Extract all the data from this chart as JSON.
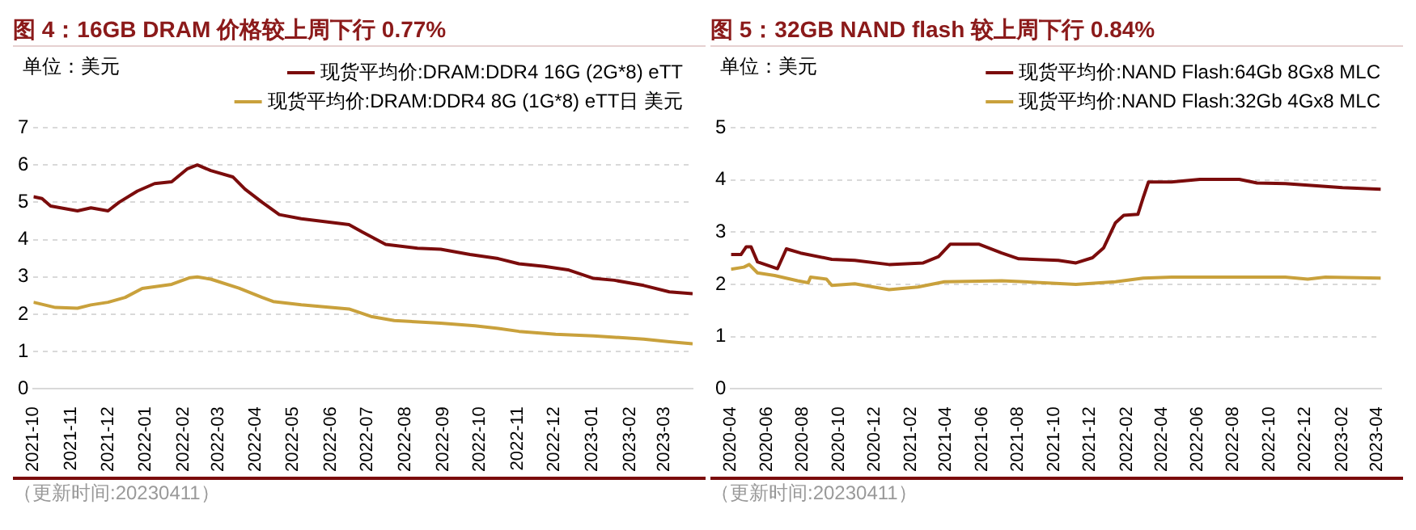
{
  "chart_data": [
    {
      "type": "line",
      "title": "图 4：16GB DRAM 价格较上周下行 0.77%",
      "ylabel": "单位：美元",
      "legend": "top",
      "grid": "y",
      "xlim": [
        "2021-10-01",
        "2023-03-24"
      ],
      "ylim": [
        0,
        7
      ],
      "yticks": [
        0,
        1,
        2,
        3,
        4,
        5,
        6,
        7
      ],
      "xticks": [
        "2021-10",
        "2021-11",
        "2021-12",
        "2022-01",
        "2022-02",
        "2022-03",
        "2022-04",
        "2022-05",
        "2022-06",
        "2022-07",
        "2022-08",
        "2022-09",
        "2022-10",
        "2022-11",
        "2022-12",
        "2023-01",
        "2023-02",
        "2023-03"
      ],
      "annotations": [
        "（更新时间:20230411）"
      ],
      "series": [
        {
          "name": "现货平均价:DRAM:DDR4 16G (2G*8) eTT",
          "color": "#7b0c0c",
          "x": [
            "2021-10-01",
            "2021-10-08",
            "2021-10-15",
            "2021-11-06",
            "2021-11-17",
            "2021-12-01",
            "2021-12-10",
            "2021-12-25",
            "2022-01-08",
            "2022-01-22",
            "2022-02-04",
            "2022-02-12",
            "2022-02-23",
            "2022-03-13",
            "2022-03-23",
            "2022-04-06",
            "2022-04-20",
            "2022-05-08",
            "2022-06-16",
            "2022-06-27",
            "2022-07-16",
            "2022-08-11",
            "2022-08-30",
            "2022-09-23",
            "2022-10-16",
            "2022-11-02",
            "2022-11-23",
            "2022-12-12",
            "2023-01-02",
            "2023-01-19",
            "2023-02-12",
            "2023-03-05",
            "2023-03-24"
          ],
          "values": [
            5.15,
            5.1,
            4.9,
            4.77,
            4.85,
            4.77,
            5.0,
            5.3,
            5.5,
            5.55,
            5.9,
            6.0,
            5.85,
            5.68,
            5.35,
            5.0,
            4.67,
            4.56,
            4.4,
            4.2,
            3.87,
            3.77,
            3.74,
            3.6,
            3.49,
            3.35,
            3.28,
            3.19,
            2.96,
            2.91,
            2.77,
            2.6,
            2.55
          ]
        },
        {
          "name": "现货平均价:DRAM:DDR4 8G (1G*8) eTT日 美元",
          "color": "#c9a13c",
          "x": [
            "2021-10-01",
            "2021-10-19",
            "2021-11-06",
            "2021-11-17",
            "2021-12-01",
            "2021-12-15",
            "2021-12-29",
            "2022-01-22",
            "2022-02-06",
            "2022-02-12",
            "2022-02-23",
            "2022-03-18",
            "2022-04-06",
            "2022-04-15",
            "2022-05-08",
            "2022-06-16",
            "2022-07-04",
            "2022-07-23",
            "2022-08-30",
            "2022-09-27",
            "2022-10-16",
            "2022-11-02",
            "2022-12-02",
            "2023-01-02",
            "2023-02-12",
            "2023-03-05",
            "2023-03-24"
          ],
          "values": [
            2.32,
            2.18,
            2.16,
            2.25,
            2.32,
            2.45,
            2.69,
            2.8,
            2.98,
            3.0,
            2.94,
            2.7,
            2.45,
            2.34,
            2.25,
            2.14,
            1.94,
            1.83,
            1.76,
            1.69,
            1.62,
            1.54,
            1.46,
            1.42,
            1.33,
            1.26,
            1.21
          ]
        }
      ]
    },
    {
      "type": "line",
      "title": "图 5：32GB NAND flash 较上周下行 0.84%",
      "ylabel": "单位：美元",
      "legend": "top",
      "grid": "y",
      "xlim": [
        "2020-04-01",
        "2023-04-08"
      ],
      "ylim": [
        0,
        5
      ],
      "yticks": [
        0,
        1,
        2,
        3,
        4,
        5
      ],
      "xticks": [
        "2020-04",
        "2020-06",
        "2020-08",
        "2020-10",
        "2020-12",
        "2021-02",
        "2021-04",
        "2021-06",
        "2021-08",
        "2021-10",
        "2021-12",
        "2022-02",
        "2022-04",
        "2022-06",
        "2022-08",
        "2022-10",
        "2022-12",
        "2023-02",
        "2023-04"
      ],
      "annotations": [
        "（更新时间:20230411）"
      ],
      "series": [
        {
          "name": "现货平均价:NAND Flash:64Gb 8Gx8 MLC",
          "color": "#7b0c0c",
          "x": [
            "2020-04-01",
            "2020-04-18",
            "2020-04-27",
            "2020-05-05",
            "2020-05-16",
            "2020-06-19",
            "2020-07-04",
            "2020-07-28",
            "2020-09-19",
            "2020-10-28",
            "2020-12-25",
            "2021-02-21",
            "2021-03-19",
            "2021-04-08",
            "2021-05-26",
            "2021-07-04",
            "2021-08-02",
            "2021-10-08",
            "2021-11-07",
            "2021-12-05",
            "2021-12-24",
            "2022-01-13",
            "2022-01-27",
            "2022-02-20",
            "2022-03-01",
            "2022-03-10",
            "2022-04-18",
            "2022-06-05",
            "2022-08-11",
            "2022-09-10",
            "2022-10-28",
            "2023-02-02",
            "2023-04-08"
          ],
          "values": [
            2.57,
            2.57,
            2.72,
            2.72,
            2.43,
            2.3,
            2.68,
            2.6,
            2.48,
            2.46,
            2.38,
            2.41,
            2.53,
            2.77,
            2.77,
            2.6,
            2.49,
            2.46,
            2.41,
            2.51,
            2.7,
            3.18,
            3.32,
            3.34,
            3.66,
            3.96,
            3.96,
            4.01,
            4.01,
            3.94,
            3.93,
            3.85,
            3.82
          ]
        },
        {
          "name": "现货平均价:NAND Flash:32Gb 4Gx8 MLC",
          "color": "#c9a13c",
          "x": [
            "2020-04-01",
            "2020-04-23",
            "2020-05-02",
            "2020-05-16",
            "2020-06-14",
            "2020-07-23",
            "2020-08-10",
            "2020-08-14",
            "2020-09-10",
            "2020-09-19",
            "2020-10-28",
            "2020-12-25",
            "2021-02-12",
            "2021-03-29",
            "2021-07-04",
            "2021-11-07",
            "2022-01-13",
            "2022-03-01",
            "2022-04-18",
            "2022-10-28",
            "2022-12-05",
            "2023-01-04",
            "2023-04-08"
          ],
          "values": [
            2.29,
            2.33,
            2.38,
            2.22,
            2.17,
            2.07,
            2.03,
            2.14,
            2.1,
            1.98,
            2.01,
            1.9,
            1.95,
            2.05,
            2.07,
            2.0,
            2.05,
            2.12,
            2.14,
            2.14,
            2.1,
            2.14,
            2.12
          ]
        }
      ]
    }
  ]
}
